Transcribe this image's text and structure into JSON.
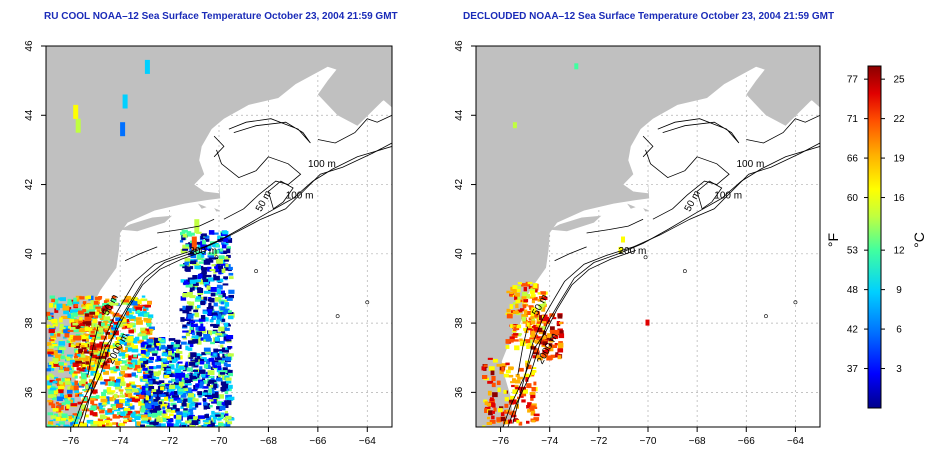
{
  "panels": [
    {
      "id": "left",
      "title": "RU COOL NOAA–12 Sea Surface Temperature October 23, 2004 21:59 GMT",
      "contour_labels": [
        "100 m",
        "100 m",
        "50 m",
        "200 m",
        "50 m",
        "2000 m"
      ],
      "mode": "raw"
    },
    {
      "id": "right",
      "title": "DECLOUDED NOAA–12 Sea Surface Temperature October 23, 2004 21:59 GMT",
      "contour_labels": [
        "100 m",
        "100 m",
        "50 m",
        "200 m",
        "50 m",
        "2000 m"
      ],
      "mode": "declouded"
    }
  ],
  "map_extent": {
    "lon": [
      -77,
      -63
    ],
    "lat": [
      35,
      46
    ]
  },
  "x_ticks": [
    "−76",
    "−74",
    "−72",
    "−70",
    "−68",
    "−66",
    "−64"
  ],
  "x_tick_values": [
    -76,
    -74,
    -72,
    -70,
    -68,
    -66,
    -64
  ],
  "y_ticks": [
    "36",
    "38",
    "40",
    "42",
    "44",
    "46"
  ],
  "y_tick_values": [
    36,
    38,
    40,
    42,
    44,
    46
  ],
  "colorbar": {
    "unit_f": "°F",
    "unit_c": "°C",
    "fahrenheit_ticks": [
      "77",
      "71",
      "66",
      "60",
      "53",
      "48",
      "42",
      "37"
    ],
    "celsius_ticks": [
      "25",
      "22",
      "19",
      "16",
      "12",
      "9",
      "6",
      "3"
    ],
    "range_c": [
      0,
      26
    ],
    "celsius_values": [
      25,
      22,
      19,
      16,
      12,
      9,
      6,
      3
    ],
    "colors": [
      "#00008b",
      "#0000ff",
      "#0070ff",
      "#00d0ff",
      "#40ffa0",
      "#c0ff40",
      "#ffff00",
      "#ffb000",
      "#ff5000",
      "#e00000",
      "#8b0000"
    ]
  },
  "colors": {
    "land": "#c0c0c0",
    "ocean": "#ffffff",
    "grid": "#b0b0b0",
    "contour": "#000000",
    "title": "#1a2bb8"
  }
}
